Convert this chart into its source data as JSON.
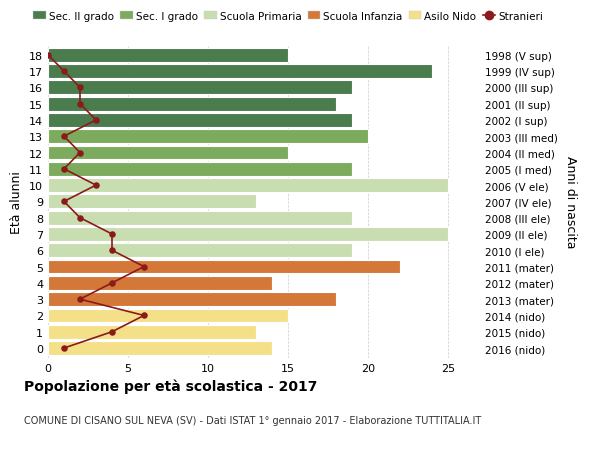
{
  "ages": [
    18,
    17,
    16,
    15,
    14,
    13,
    12,
    11,
    10,
    9,
    8,
    7,
    6,
    5,
    4,
    3,
    2,
    1,
    0
  ],
  "right_labels": [
    "1998 (V sup)",
    "1999 (IV sup)",
    "2000 (III sup)",
    "2001 (II sup)",
    "2002 (I sup)",
    "2003 (III med)",
    "2004 (II med)",
    "2005 (I med)",
    "2006 (V ele)",
    "2007 (IV ele)",
    "2008 (III ele)",
    "2009 (II ele)",
    "2010 (I ele)",
    "2011 (mater)",
    "2012 (mater)",
    "2013 (mater)",
    "2014 (nido)",
    "2015 (nido)",
    "2016 (nido)"
  ],
  "bar_values": [
    15,
    24,
    19,
    18,
    19,
    20,
    15,
    19,
    25,
    13,
    19,
    25,
    19,
    22,
    14,
    18,
    15,
    13,
    14
  ],
  "bar_colors": [
    "#4a7c4e",
    "#4a7c4e",
    "#4a7c4e",
    "#4a7c4e",
    "#4a7c4e",
    "#7dab5e",
    "#7dab5e",
    "#7dab5e",
    "#c8ddb0",
    "#c8ddb0",
    "#c8ddb0",
    "#c8ddb0",
    "#c8ddb0",
    "#d4783a",
    "#d4783a",
    "#d4783a",
    "#f5e08a",
    "#f5e08a",
    "#f5e08a"
  ],
  "stranieri_values": [
    0,
    1,
    2,
    2,
    3,
    1,
    2,
    1,
    3,
    1,
    2,
    4,
    4,
    6,
    4,
    2,
    6,
    4,
    1
  ],
  "stranieri_color": "#8b1a1a",
  "legend_labels": [
    "Sec. II grado",
    "Sec. I grado",
    "Scuola Primaria",
    "Scuola Infanzia",
    "Asilo Nido",
    "Stranieri"
  ],
  "legend_colors": [
    "#4a7c4e",
    "#7dab5e",
    "#c8ddb0",
    "#d4783a",
    "#f5e08a",
    "#8b1a1a"
  ],
  "ylabel_left": "Età alunni",
  "ylabel_right": "Anni di nascita",
  "title_bold": "Popolazione per età scolastica - 2017",
  "subtitle": "COMUNE DI CISANO SUL NEVA (SV) - Dati ISTAT 1° gennaio 2017 - Elaborazione TUTTITALIA.IT",
  "xlim": [
    0,
    27
  ],
  "xticks": [
    0,
    5,
    10,
    15,
    20,
    25
  ],
  "background_color": "#ffffff",
  "bar_edge_color": "#ffffff",
  "grid_color": "#cccccc"
}
